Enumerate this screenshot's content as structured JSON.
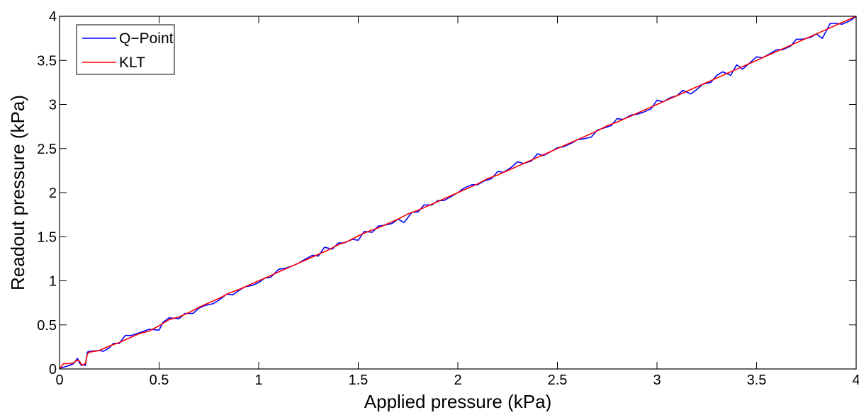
{
  "chart_data": {
    "type": "line",
    "title": "",
    "xlabel": "Applied pressure (kPa)",
    "ylabel": "Readout pressure (kPa)",
    "xlim": [
      0,
      4
    ],
    "ylim": [
      0,
      4
    ],
    "xticks": [
      "0",
      "0.5",
      "1",
      "1.5",
      "2",
      "2.5",
      "3",
      "3.5",
      "4"
    ],
    "yticks": [
      "0",
      "0.5",
      "1",
      "1.5",
      "2",
      "2.5",
      "3",
      "3.5",
      "4"
    ],
    "grid": false,
    "legend_position": "top-left",
    "series": [
      {
        "name": "Q−Point",
        "color": "#0000ff",
        "x": [
          0,
          0.02,
          0.05,
          0.07,
          0.09,
          0.1,
          0.11,
          0.12,
          0.13,
          0.14,
          0.15,
          0.2,
          0.22,
          0.25,
          0.27,
          0.3,
          0.33,
          0.36,
          0.4,
          0.45,
          0.5,
          0.52,
          0.55,
          0.6,
          0.63,
          0.67,
          0.7,
          0.73,
          0.77,
          0.8,
          0.84,
          0.87,
          0.9,
          0.93,
          0.97,
          1.0,
          1.03,
          1.06,
          1.1,
          1.13,
          1.17,
          1.2,
          1.23,
          1.27,
          1.3,
          1.33,
          1.37,
          1.4,
          1.43,
          1.47,
          1.5,
          1.53,
          1.57,
          1.6,
          1.63,
          1.67,
          1.7,
          1.73,
          1.77,
          1.8,
          1.83,
          1.87,
          1.9,
          1.93,
          1.97,
          2.0,
          2.03,
          2.07,
          2.1,
          2.13,
          2.17,
          2.2,
          2.23,
          2.27,
          2.3,
          2.33,
          2.37,
          2.4,
          2.43,
          2.47,
          2.5,
          2.53,
          2.57,
          2.6,
          2.63,
          2.67,
          2.7,
          2.73,
          2.77,
          2.8,
          2.83,
          2.87,
          2.9,
          2.93,
          2.97,
          3.0,
          3.03,
          3.07,
          3.1,
          3.13,
          3.17,
          3.2,
          3.23,
          3.27,
          3.3,
          3.33,
          3.37,
          3.4,
          3.43,
          3.47,
          3.5,
          3.53,
          3.57,
          3.6,
          3.63,
          3.67,
          3.7,
          3.73,
          3.77,
          3.8,
          3.83,
          3.87,
          3.9,
          3.93,
          3.97,
          4.0
        ],
        "y": [
          0.01,
          0.02,
          0.04,
          0.06,
          0.12,
          0.07,
          0.04,
          0.05,
          0.04,
          0.19,
          0.2,
          0.21,
          0.2,
          0.24,
          0.29,
          0.29,
          0.38,
          0.38,
          0.41,
          0.45,
          0.44,
          0.53,
          0.58,
          0.57,
          0.63,
          0.63,
          0.69,
          0.72,
          0.74,
          0.78,
          0.85,
          0.84,
          0.89,
          0.93,
          0.95,
          0.98,
          1.03,
          1.04,
          1.13,
          1.14,
          1.17,
          1.2,
          1.24,
          1.29,
          1.28,
          1.38,
          1.36,
          1.43,
          1.43,
          1.47,
          1.46,
          1.56,
          1.55,
          1.62,
          1.63,
          1.65,
          1.7,
          1.66,
          1.78,
          1.78,
          1.86,
          1.86,
          1.91,
          1.91,
          1.96,
          2.0,
          2.05,
          2.09,
          2.09,
          2.13,
          2.16,
          2.24,
          2.23,
          2.29,
          2.35,
          2.33,
          2.36,
          2.44,
          2.42,
          2.47,
          2.51,
          2.52,
          2.56,
          2.6,
          2.61,
          2.63,
          2.71,
          2.73,
          2.76,
          2.84,
          2.83,
          2.88,
          2.89,
          2.91,
          2.95,
          3.05,
          3.03,
          3.08,
          3.1,
          3.16,
          3.12,
          3.17,
          3.23,
          3.25,
          3.33,
          3.37,
          3.33,
          3.45,
          3.4,
          3.48,
          3.54,
          3.53,
          3.58,
          3.62,
          3.62,
          3.66,
          3.74,
          3.74,
          3.76,
          3.8,
          3.75,
          3.92,
          3.92,
          3.91,
          3.95,
          4.0
        ]
      },
      {
        "name": "KLT",
        "color": "#ff0000",
        "x": [
          0,
          0.02,
          0.05,
          0.07,
          0.09,
          0.1,
          0.11,
          0.12,
          0.13,
          0.14,
          0.15,
          0.2,
          0.25,
          0.3,
          0.35,
          0.4,
          0.45,
          0.5,
          0.55,
          0.6,
          0.65,
          0.7,
          0.75,
          0.8,
          0.85,
          0.9,
          0.95,
          1.0,
          1.05,
          1.1,
          1.15,
          1.2,
          1.25,
          1.3,
          1.35,
          1.4,
          1.45,
          1.5,
          1.55,
          1.6,
          1.65,
          1.7,
          1.75,
          1.8,
          1.85,
          1.9,
          1.95,
          2.0,
          2.05,
          2.1,
          2.15,
          2.2,
          2.25,
          2.3,
          2.35,
          2.4,
          2.45,
          2.5,
          2.55,
          2.6,
          2.65,
          2.7,
          2.75,
          2.8,
          2.85,
          2.9,
          2.95,
          3.0,
          3.05,
          3.1,
          3.15,
          3.2,
          3.25,
          3.3,
          3.35,
          3.4,
          3.45,
          3.5,
          3.55,
          3.6,
          3.65,
          3.7,
          3.75,
          3.8,
          3.85,
          3.9,
          3.95,
          4.0
        ],
        "y": [
          0.0,
          0.06,
          0.06,
          0.07,
          0.1,
          0.09,
          0.05,
          0.05,
          0.06,
          0.17,
          0.19,
          0.21,
          0.26,
          0.3,
          0.35,
          0.4,
          0.43,
          0.49,
          0.56,
          0.59,
          0.64,
          0.7,
          0.75,
          0.8,
          0.86,
          0.9,
          0.95,
          1.0,
          1.05,
          1.1,
          1.15,
          1.2,
          1.25,
          1.3,
          1.35,
          1.41,
          1.45,
          1.51,
          1.56,
          1.6,
          1.65,
          1.7,
          1.76,
          1.8,
          1.85,
          1.9,
          1.95,
          2.0,
          2.05,
          2.1,
          2.16,
          2.2,
          2.25,
          2.3,
          2.35,
          2.4,
          2.45,
          2.5,
          2.55,
          2.6,
          2.65,
          2.7,
          2.76,
          2.8,
          2.85,
          2.9,
          2.95,
          3.0,
          3.05,
          3.1,
          3.15,
          3.2,
          3.25,
          3.3,
          3.35,
          3.4,
          3.45,
          3.5,
          3.55,
          3.6,
          3.65,
          3.7,
          3.75,
          3.8,
          3.85,
          3.9,
          3.95,
          4.0
        ]
      }
    ]
  }
}
